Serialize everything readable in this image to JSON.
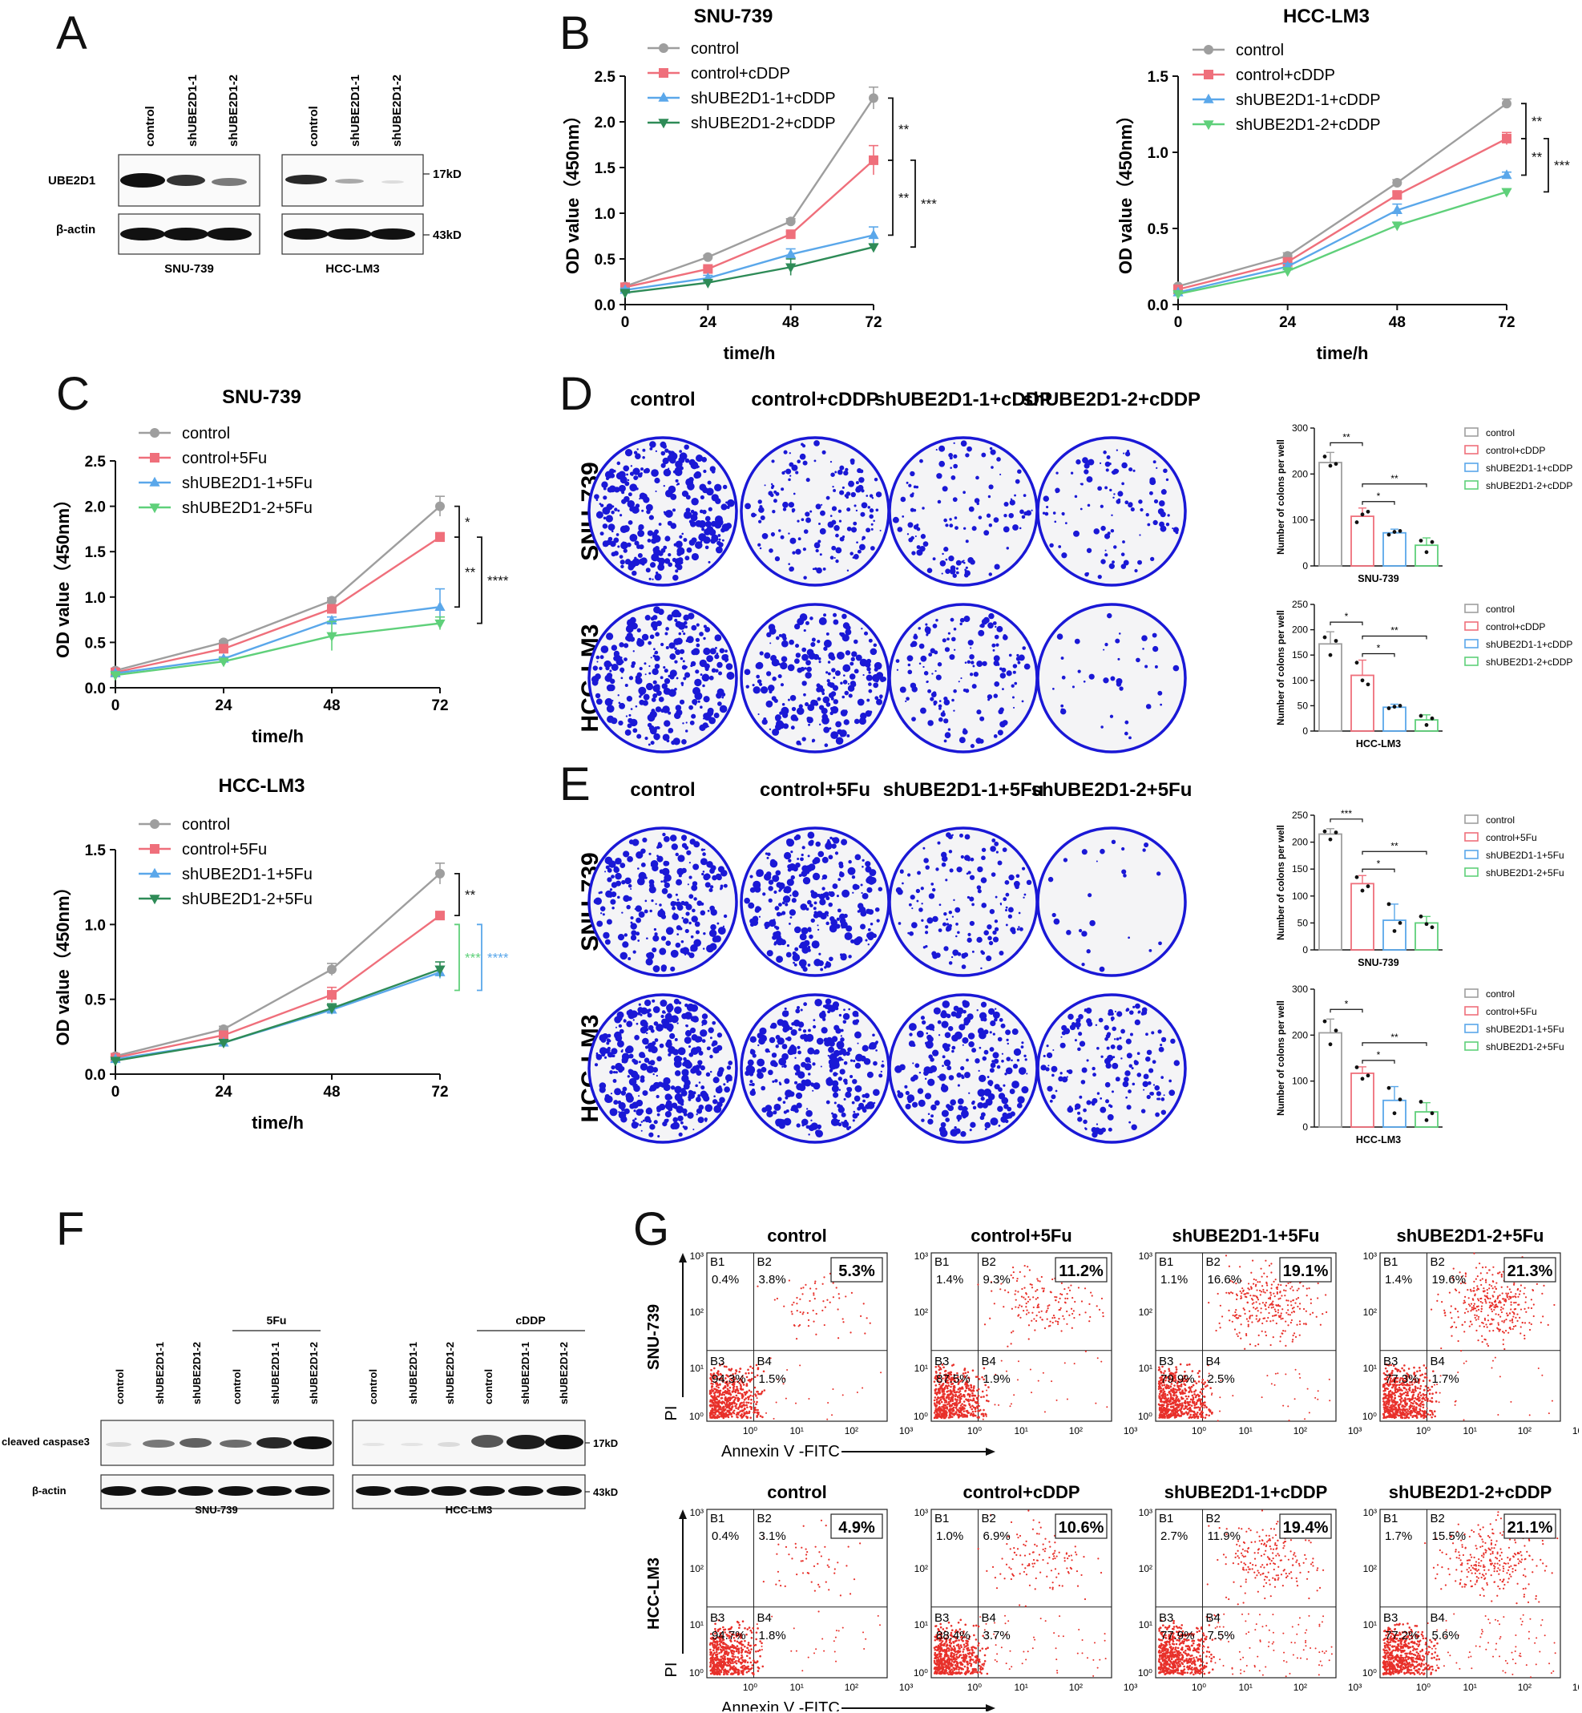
{
  "panels": {
    "A": "A",
    "B": "B",
    "C": "C",
    "D": "D",
    "E": "E",
    "F": "F",
    "G": "G"
  },
  "colors": {
    "control": "#9e9e9e",
    "cddp": "#ef6f7b",
    "sh1": "#5aa7ea",
    "sh2_cddp_snu": "#2e8b57",
    "sh2": "#5fd07a",
    "colony": "#1a18d6",
    "flow": "#e8302a"
  },
  "panelA": {
    "lanes_snu": [
      "control",
      "shUBE2D1-1",
      "shUBE2D1-2"
    ],
    "lanes_hcc": [
      "control",
      "shUBE2D1-1",
      "shUBE2D1-2"
    ],
    "row1": "UBE2D1",
    "row2": "β-actin",
    "mw1": "17kD",
    "mw2": "43kD",
    "cell_snu": "SNU-739",
    "cell_hcc": "HCC-LM3"
  },
  "panelD": {
    "cols": [
      "control",
      "control+cDDP",
      "shUBE2D1-1+cDDP",
      "shUBE2D1-2+cDDP"
    ],
    "rows": [
      "SNU-739",
      "HCC-LM3"
    ]
  },
  "panelE": {
    "cols": [
      "control",
      "control+5Fu",
      "shUBE2D1-1+5Fu",
      "shUBE2D1-2+5Fu"
    ],
    "rows": [
      "SNU-739",
      "HCC-LM3"
    ]
  },
  "panelF": {
    "treat_snu": "5Fu",
    "treat_hcc": "cDDP",
    "lanes": [
      "control",
      "shUBE2D1-1",
      "shUBE2D1-2",
      "control",
      "shUBE2D1-1",
      "shUBE2D1-2"
    ],
    "row1": "cleaved caspase3",
    "row2": "β-actin",
    "mw1": "17kD",
    "mw2": "43kD",
    "cell_snu": "SNU-739",
    "cell_hcc": "HCC-LM3"
  },
  "panelG": {
    "ylabel": "PI",
    "xlabel": "Annexin V -FITC",
    "row_labels": [
      "SNU-739",
      "HCC-LM3"
    ],
    "ticks": [
      "10⁰",
      "10¹",
      "10²",
      "10³"
    ],
    "quadrants": [
      "B1",
      "B2",
      "B3",
      "B4"
    ],
    "rows": [
      [
        {
          "title": "control",
          "b1": "0.4%",
          "b2": "3.8%",
          "b3": "94.3%",
          "b4": "1.5%",
          "total": "5.3%"
        },
        {
          "title": "control+5Fu",
          "b1": "1.4%",
          "b2": "9.3%",
          "b3": "87.5%",
          "b4": "1.9%",
          "total": "11.2%"
        },
        {
          "title": "shUBE2D1-1+5Fu",
          "b1": "1.1%",
          "b2": "16.6%",
          "b3": "79.9%",
          "b4": "2.5%",
          "total": "19.1%"
        },
        {
          "title": "shUBE2D1-2+5Fu",
          "b1": "1.4%",
          "b2": "19.6%",
          "b3": "77.3%",
          "b4": "1.7%",
          "total": "21.3%"
        }
      ],
      [
        {
          "title": "control",
          "b1": "0.4%",
          "b2": "3.1%",
          "b3": "94.7%",
          "b4": "1.8%",
          "total": "4.9%"
        },
        {
          "title": "control+cDDP",
          "b1": "1.0%",
          "b2": "6.9%",
          "b3": "88.4%",
          "b4": "3.7%",
          "total": "10.6%"
        },
        {
          "title": "shUBE2D1-1+cDDP",
          "b1": "2.7%",
          "b2": "11.9%",
          "b3": "77.9%",
          "b4": "7.5%",
          "total": "19.4%"
        },
        {
          "title": "shUBE2D1-2+cDDP",
          "b1": "1.7%",
          "b2": "15.5%",
          "b3": "77.2%",
          "b4": "5.6%",
          "total": "21.1%"
        }
      ]
    ]
  },
  "chart_data": [
    {
      "id": "B-SNU-739",
      "type": "line",
      "title": "SNU-739",
      "xlabel": "time/h",
      "ylabel": "OD value（450nm）",
      "x": [
        0,
        24,
        48,
        72
      ],
      "xticks": [
        "0",
        "24",
        "48",
        "72"
      ],
      "ylim": [
        0,
        2.5
      ],
      "yticks": [
        "0.0",
        "0.5",
        "1.0",
        "1.5",
        "2.0",
        "2.5"
      ],
      "series": [
        {
          "name": "control",
          "values": [
            0.2,
            0.52,
            0.91,
            2.26
          ],
          "err": [
            0.02,
            0.02,
            0.03,
            0.12
          ],
          "marker": "circle",
          "colorKey": "control"
        },
        {
          "name": "control+cDDP",
          "values": [
            0.19,
            0.39,
            0.77,
            1.58
          ],
          "err": [
            0.02,
            0.02,
            0.03,
            0.16
          ],
          "marker": "square",
          "colorKey": "cddp"
        },
        {
          "name": "shUBE2D1-1+cDDP",
          "values": [
            0.16,
            0.29,
            0.55,
            0.76
          ],
          "err": [
            0.02,
            0.03,
            0.06,
            0.09
          ],
          "marker": "triangle",
          "colorKey": "sh1"
        },
        {
          "name": "shUBE2D1-2+cDDP",
          "values": [
            0.13,
            0.24,
            0.41,
            0.63
          ],
          "err": [
            0.02,
            0.02,
            0.09,
            0.03
          ],
          "marker": "triangle-down",
          "colorKey": "sh2_cddp_snu"
        }
      ],
      "sig": [
        {
          "from": 2.26,
          "to": 1.58,
          "label": "**",
          "level": 0
        },
        {
          "from": 1.58,
          "to": 0.76,
          "label": "**",
          "level": 0
        },
        {
          "from": 1.58,
          "to": 0.63,
          "label": "***",
          "level": 1
        }
      ]
    },
    {
      "id": "B-HCC-LM3",
      "type": "line",
      "title": "HCC-LM3",
      "xlabel": "time/h",
      "ylabel": "OD value（450nm）",
      "x": [
        0,
        24,
        48,
        72
      ],
      "xticks": [
        "0",
        "24",
        "48",
        "72"
      ],
      "ylim": [
        0,
        1.5
      ],
      "yticks": [
        "0.0",
        "0.5",
        "1.0",
        "1.5"
      ],
      "series": [
        {
          "name": "control",
          "values": [
            0.12,
            0.32,
            0.8,
            1.32
          ],
          "err": [
            0.01,
            0.02,
            0.02,
            0.03
          ],
          "marker": "circle",
          "colorKey": "control"
        },
        {
          "name": "control+cDDP",
          "values": [
            0.1,
            0.28,
            0.72,
            1.09
          ],
          "err": [
            0.01,
            0.02,
            0.02,
            0.04
          ],
          "marker": "square",
          "colorKey": "cddp"
        },
        {
          "name": "shUBE2D1-1+cDDP",
          "values": [
            0.08,
            0.25,
            0.62,
            0.85
          ],
          "err": [
            0.01,
            0.02,
            0.04,
            0.02
          ],
          "marker": "triangle",
          "colorKey": "sh1"
        },
        {
          "name": "shUBE2D1-2+cDDP",
          "values": [
            0.07,
            0.22,
            0.52,
            0.74
          ],
          "err": [
            0.01,
            0.02,
            0.02,
            0.02
          ],
          "marker": "triangle-down",
          "colorKey": "sh2"
        }
      ],
      "sig": [
        {
          "from": 1.32,
          "to": 1.09,
          "label": "**",
          "level": 0
        },
        {
          "from": 1.09,
          "to": 0.85,
          "label": "**",
          "level": 0
        },
        {
          "from": 1.09,
          "to": 0.74,
          "label": "***",
          "level": 1
        }
      ]
    },
    {
      "id": "C-SNU-739",
      "type": "line",
      "title": "SNU-739",
      "xlabel": "time/h",
      "ylabel": "OD value（450nm）",
      "x": [
        0,
        24,
        48,
        72
      ],
      "xticks": [
        "0",
        "24",
        "48",
        "72"
      ],
      "ylim": [
        0,
        2.5
      ],
      "yticks": [
        "0.0",
        "0.5",
        "1.0",
        "1.5",
        "2.0",
        "2.5"
      ],
      "series": [
        {
          "name": "control",
          "values": [
            0.19,
            0.5,
            0.96,
            2.0
          ],
          "err": [
            0.02,
            0.02,
            0.03,
            0.11
          ],
          "marker": "circle",
          "colorKey": "control"
        },
        {
          "name": "control+5Fu",
          "values": [
            0.17,
            0.43,
            0.87,
            1.66
          ],
          "err": [
            0.02,
            0.02,
            0.03,
            0.05
          ],
          "marker": "square",
          "colorKey": "cddp"
        },
        {
          "name": "shUBE2D1-1+5Fu",
          "values": [
            0.16,
            0.32,
            0.74,
            0.89
          ],
          "err": [
            0.02,
            0.02,
            0.04,
            0.2
          ],
          "marker": "triangle",
          "colorKey": "sh1"
        },
        {
          "name": "shUBE2D1-2+5Fu",
          "values": [
            0.14,
            0.29,
            0.57,
            0.71
          ],
          "err": [
            0.02,
            0.02,
            0.16,
            0.07
          ],
          "marker": "triangle-down",
          "colorKey": "sh2"
        }
      ],
      "sig": [
        {
          "from": 2.0,
          "to": 1.66,
          "label": "*",
          "level": 0
        },
        {
          "from": 1.66,
          "to": 0.89,
          "label": "**",
          "level": 0
        },
        {
          "from": 1.66,
          "to": 0.71,
          "label": "****",
          "level": 1
        }
      ]
    },
    {
      "id": "C-HCC-LM3",
      "type": "line",
      "title": "HCC-LM3",
      "xlabel": "time/h",
      "ylabel": "OD value（450nm）",
      "x": [
        0,
        24,
        48,
        72
      ],
      "xticks": [
        "0",
        "24",
        "48",
        "72"
      ],
      "ylim": [
        0,
        1.5
      ],
      "yticks": [
        "0.0",
        "0.5",
        "1.0",
        "1.5"
      ],
      "series": [
        {
          "name": "control",
          "values": [
            0.12,
            0.3,
            0.7,
            1.34
          ],
          "err": [
            0.01,
            0.02,
            0.04,
            0.07
          ],
          "marker": "circle",
          "colorKey": "control"
        },
        {
          "name": "control+5Fu",
          "values": [
            0.11,
            0.26,
            0.53,
            1.06
          ],
          "err": [
            0.01,
            0.02,
            0.05,
            0.02
          ],
          "marker": "square",
          "colorKey": "cddp"
        },
        {
          "name": "shUBE2D1-1+5Fu",
          "values": [
            0.1,
            0.21,
            0.43,
            0.68
          ],
          "err": [
            0.01,
            0.02,
            0.03,
            0.04
          ],
          "marker": "triangle",
          "colorKey": "sh1"
        },
        {
          "name": "shUBE2D1-2+5Fu",
          "values": [
            0.09,
            0.21,
            0.44,
            0.7
          ],
          "err": [
            0.01,
            0.02,
            0.03,
            0.05
          ],
          "marker": "triangle-down",
          "colorKey": "sh2_cddp_snu"
        }
      ],
      "sig": [
        {
          "from": 1.34,
          "to": 1.06,
          "label": "**",
          "level": 0
        },
        {
          "from": 1.0,
          "to": 0.56,
          "label": "***",
          "level": 0,
          "colorKey": "sh2",
          "bracketColorKey": "sh2"
        },
        {
          "from": 1.0,
          "to": 0.56,
          "label": "****",
          "level": 1,
          "colorKey": "sh1",
          "bracketColorKey": "sh1"
        }
      ]
    },
    {
      "id": "D-bar-SNU-739",
      "type": "bar",
      "title": "",
      "xlabel": "SNU-739",
      "ylabel": "Number of colons  per well",
      "categories": [
        "control",
        "control+cDDP",
        "shUBE2D1-1+cDDP",
        "shUBE2D1-2+cDDP"
      ],
      "values": [
        225,
        108,
        72,
        45
      ],
      "err": [
        22,
        18,
        8,
        16
      ],
      "ylim": [
        0,
        300
      ],
      "yticks": [
        "0",
        "100",
        "200",
        "300"
      ],
      "points": [
        [
          238,
          218,
          222
        ],
        [
          95,
          112,
          118
        ],
        [
          68,
          74,
          76
        ],
        [
          55,
          30,
          52
        ]
      ],
      "sig": [
        {
          "a": 0,
          "b": 1,
          "label": "**",
          "level": 2
        },
        {
          "a": 1,
          "b": 3,
          "label": "**",
          "level": 1
        },
        {
          "a": 1,
          "b": 2,
          "label": "*",
          "level": 0
        }
      ]
    },
    {
      "id": "D-bar-HCC-LM3",
      "type": "bar",
      "title": "",
      "xlabel": "HCC-LM3",
      "ylabel": "Number of colons  per well",
      "categories": [
        "control",
        "control+cDDP",
        "shUBE2D1-1+cDDP",
        "shUBE2D1-2+cDDP"
      ],
      "values": [
        172,
        110,
        47,
        22
      ],
      "err": [
        24,
        30,
        6,
        10
      ],
      "ylim": [
        0,
        250
      ],
      "yticks": [
        "0",
        "50",
        "100",
        "150",
        "200",
        "250"
      ],
      "points": [
        [
          185,
          150,
          178
        ],
        [
          135,
          100,
          92
        ],
        [
          45,
          48,
          50
        ],
        [
          30,
          12,
          25
        ]
      ],
      "sig": [
        {
          "a": 0,
          "b": 1,
          "label": "*",
          "level": 2
        },
        {
          "a": 1,
          "b": 3,
          "label": "**",
          "level": 1
        },
        {
          "a": 1,
          "b": 2,
          "label": "*",
          "level": 0
        }
      ]
    },
    {
      "id": "E-bar-SNU-739",
      "type": "bar",
      "title": "",
      "xlabel": "SNU-739",
      "ylabel": "Number of colons  per well",
      "categories": [
        "control",
        "control+5Fu",
        "shUBE2D1-1+5Fu",
        "shUBE2D1-2+5Fu"
      ],
      "values": [
        215,
        123,
        55,
        50
      ],
      "err": [
        10,
        15,
        30,
        12
      ],
      "ylim": [
        0,
        250
      ],
      "yticks": [
        "0",
        "50",
        "100",
        "150",
        "200",
        "250"
      ],
      "points": [
        [
          220,
          205,
          218
        ],
        [
          135,
          110,
          118
        ],
        [
          85,
          35,
          50
        ],
        [
          62,
          48,
          42
        ]
      ],
      "sig": [
        {
          "a": 0,
          "b": 1,
          "label": "***",
          "level": 2
        },
        {
          "a": 1,
          "b": 3,
          "label": "**",
          "level": 1
        },
        {
          "a": 1,
          "b": 2,
          "label": "*",
          "level": 0
        }
      ]
    },
    {
      "id": "E-bar-HCC-LM3",
      "type": "bar",
      "title": "",
      "xlabel": "HCC-LM3",
      "ylabel": "Number of colons  per well",
      "categories": [
        "control",
        "control+5Fu",
        "shUBE2D1-1+5Fu",
        "shUBE2D1-2+5Fu"
      ],
      "values": [
        205,
        117,
        58,
        33
      ],
      "err": [
        30,
        14,
        30,
        20
      ],
      "ylim": [
        0,
        300
      ],
      "yticks": [
        "0",
        "100",
        "200",
        "300"
      ],
      "points": [
        [
          230,
          180,
          210
        ],
        [
          130,
          105,
          112
        ],
        [
          85,
          30,
          60
        ],
        [
          55,
          15,
          30
        ]
      ],
      "sig": [
        {
          "a": 0,
          "b": 1,
          "label": "*",
          "level": 2
        },
        {
          "a": 1,
          "b": 3,
          "label": "**",
          "level": 1
        },
        {
          "a": 1,
          "b": 2,
          "label": "*",
          "level": 0
        }
      ]
    }
  ]
}
